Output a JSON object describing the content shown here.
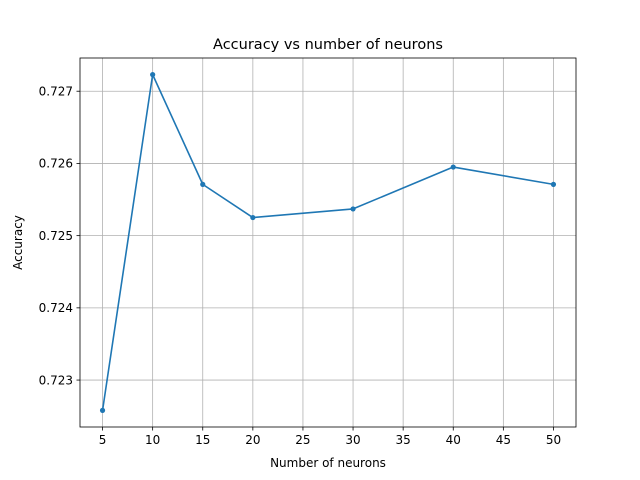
{
  "chart_data": {
    "type": "line",
    "title": "Accuracy vs number of neurons",
    "xlabel": "Number of neurons",
    "ylabel": "Accuracy",
    "xlim": [
      2.75,
      52.25
    ],
    "ylim": [
      0.72235,
      0.72746
    ],
    "xticks": [
      5,
      10,
      15,
      20,
      25,
      30,
      35,
      40,
      45,
      50
    ],
    "yticks": [
      0.723,
      0.724,
      0.725,
      0.726,
      0.727
    ],
    "ytick_labels": [
      "0.723",
      "0.724",
      "0.725",
      "0.726",
      "0.727"
    ],
    "grid": true,
    "series": [
      {
        "color": "#1f77b4",
        "marker": "dot",
        "x": [
          5,
          10,
          15,
          20,
          30,
          40,
          50
        ],
        "y": [
          0.72258,
          0.72723,
          0.72571,
          0.72525,
          0.72537,
          0.72595,
          0.72571
        ]
      }
    ]
  }
}
